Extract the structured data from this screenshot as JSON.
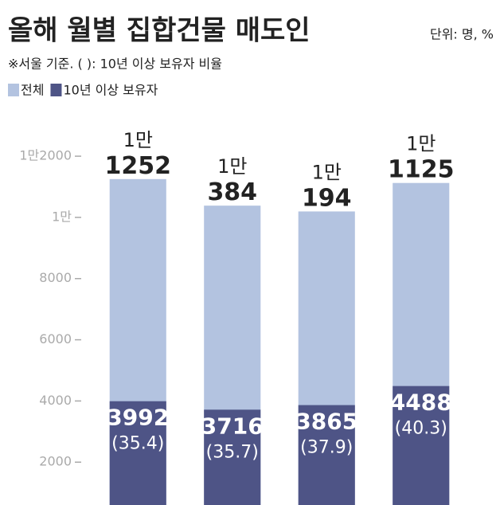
{
  "chart_data": {
    "type": "bar",
    "title": "올해 월별 집합건물 매도인",
    "unit": "단위: 명, %",
    "note": "※서울 기준. ( ): 10년 이상 보유자 비율",
    "categories": [
      null,
      null,
      null,
      null
    ],
    "series": [
      {
        "name": "전체",
        "color": "#b3c3e0",
        "values": [
          11252,
          10384,
          10194,
          11125
        ],
        "value_labels": [
          "1만 1252",
          "1만 384",
          "1만 194",
          "1만 1125"
        ]
      },
      {
        "name": "10년 이상 보유자",
        "color": "#4e5486",
        "values": [
          3992,
          3716,
          3865,
          4488
        ],
        "share_labels": [
          "(35.4)",
          "(35.7)",
          "(37.9)",
          "(40.3)"
        ]
      }
    ],
    "overlap": true,
    "ylim": [
      600,
      13200
    ],
    "yticks": [
      2000,
      4000,
      6000,
      8000,
      {
        "value": 10000,
        "label": "1만"
      },
      {
        "value": 12000,
        "label": "1만2000"
      }
    ],
    "legend": "top-left"
  }
}
